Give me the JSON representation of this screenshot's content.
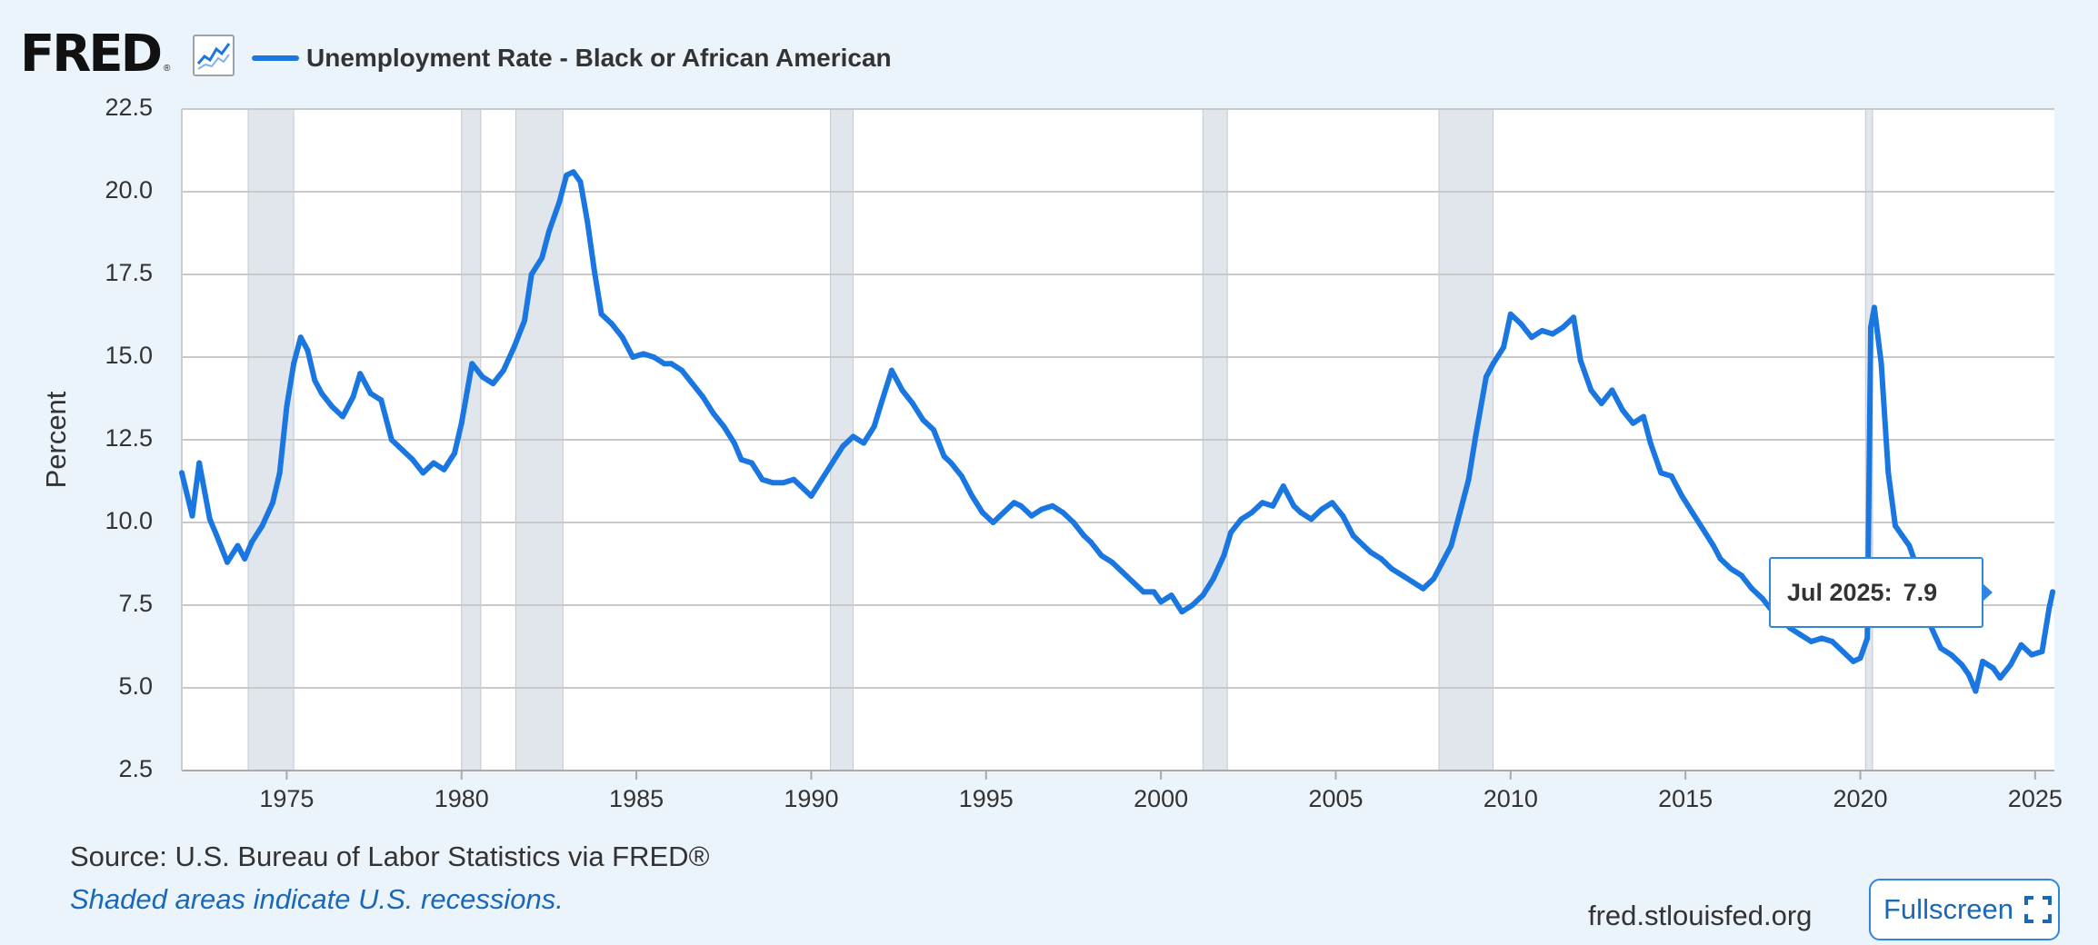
{
  "header": {
    "logo_text": "FRED",
    "logo_reg": "®",
    "graph_icon": "line-graph-icon",
    "legend_label": "Unemployment Rate - Black or African American"
  },
  "tooltip": {
    "date": "Jul 2025:",
    "value": "7.9"
  },
  "footer": {
    "source": "U.S. Bureau of Labor Statistics via FRED®",
    "source_prefix": "Source: ",
    "note": "Shaded areas indicate U.S. recessions.",
    "site": "fred.stlouisfed.org",
    "fullscreen_label": "Fullscreen",
    "fullscreen_icon": "expand-icon"
  },
  "colors": {
    "line": "#1a76e0",
    "recession": "#e1e6ec",
    "grid": "#c9c9c9",
    "background": "#ebf3fb"
  },
  "chart_data": {
    "type": "line",
    "title": "",
    "xlabel": "",
    "ylabel": "Percent",
    "xlim": [
      1972.0,
      2025.55
    ],
    "ylim": [
      2.5,
      22.5
    ],
    "yticks": [
      "2.5",
      "5.0",
      "7.5",
      "10.0",
      "12.5",
      "15.0",
      "17.5",
      "20.0",
      "22.5"
    ],
    "xticks": [
      "1975",
      "1980",
      "1985",
      "1990",
      "1995",
      "2000",
      "2005",
      "2010",
      "2015",
      "2020",
      "2025"
    ],
    "grid": true,
    "legend": "top-left",
    "recessions": [
      [
        1973.9,
        1975.2
      ],
      [
        1980.0,
        1980.55
      ],
      [
        1981.55,
        1982.9
      ],
      [
        1990.55,
        1991.2
      ],
      [
        2001.2,
        2001.9
      ],
      [
        2007.95,
        2009.5
      ],
      [
        2020.15,
        2020.35
      ]
    ],
    "series": [
      {
        "name": "Unemployment Rate - Black or African American",
        "points": [
          [
            1972.0,
            11.5
          ],
          [
            1972.3,
            10.2
          ],
          [
            1972.5,
            11.8
          ],
          [
            1972.8,
            10.1
          ],
          [
            1973.0,
            9.6
          ],
          [
            1973.3,
            8.8
          ],
          [
            1973.6,
            9.3
          ],
          [
            1973.8,
            8.9
          ],
          [
            1974.0,
            9.4
          ],
          [
            1974.3,
            9.9
          ],
          [
            1974.6,
            10.6
          ],
          [
            1974.8,
            11.5
          ],
          [
            1975.0,
            13.5
          ],
          [
            1975.2,
            14.8
          ],
          [
            1975.4,
            15.6
          ],
          [
            1975.6,
            15.2
          ],
          [
            1975.8,
            14.3
          ],
          [
            1976.0,
            13.9
          ],
          [
            1976.3,
            13.5
          ],
          [
            1976.6,
            13.2
          ],
          [
            1976.9,
            13.8
          ],
          [
            1977.1,
            14.5
          ],
          [
            1977.4,
            13.9
          ],
          [
            1977.7,
            13.7
          ],
          [
            1978.0,
            12.5
          ],
          [
            1978.3,
            12.2
          ],
          [
            1978.6,
            11.9
          ],
          [
            1978.9,
            11.5
          ],
          [
            1979.2,
            11.8
          ],
          [
            1979.5,
            11.6
          ],
          [
            1979.8,
            12.1
          ],
          [
            1980.0,
            13.0
          ],
          [
            1980.3,
            14.8
          ],
          [
            1980.6,
            14.4
          ],
          [
            1980.9,
            14.2
          ],
          [
            1981.2,
            14.6
          ],
          [
            1981.5,
            15.3
          ],
          [
            1981.8,
            16.1
          ],
          [
            1982.0,
            17.5
          ],
          [
            1982.3,
            18.0
          ],
          [
            1982.5,
            18.8
          ],
          [
            1982.8,
            19.7
          ],
          [
            1983.0,
            20.5
          ],
          [
            1983.2,
            20.6
          ],
          [
            1983.4,
            20.3
          ],
          [
            1983.6,
            19.1
          ],
          [
            1983.8,
            17.6
          ],
          [
            1984.0,
            16.3
          ],
          [
            1984.3,
            16.0
          ],
          [
            1984.6,
            15.6
          ],
          [
            1984.9,
            15.0
          ],
          [
            1985.2,
            15.1
          ],
          [
            1985.5,
            15.0
          ],
          [
            1985.8,
            14.8
          ],
          [
            1986.0,
            14.8
          ],
          [
            1986.3,
            14.6
          ],
          [
            1986.6,
            14.2
          ],
          [
            1986.9,
            13.8
          ],
          [
            1987.2,
            13.3
          ],
          [
            1987.5,
            12.9
          ],
          [
            1987.8,
            12.4
          ],
          [
            1988.0,
            11.9
          ],
          [
            1988.3,
            11.8
          ],
          [
            1988.6,
            11.3
          ],
          [
            1988.9,
            11.2
          ],
          [
            1989.2,
            11.2
          ],
          [
            1989.5,
            11.3
          ],
          [
            1989.8,
            11.0
          ],
          [
            1990.0,
            10.8
          ],
          [
            1990.3,
            11.3
          ],
          [
            1990.6,
            11.8
          ],
          [
            1990.9,
            12.3
          ],
          [
            1991.2,
            12.6
          ],
          [
            1991.5,
            12.4
          ],
          [
            1991.8,
            12.9
          ],
          [
            1992.0,
            13.6
          ],
          [
            1992.3,
            14.6
          ],
          [
            1992.6,
            14.0
          ],
          [
            1992.9,
            13.6
          ],
          [
            1993.2,
            13.1
          ],
          [
            1993.5,
            12.8
          ],
          [
            1993.8,
            12.0
          ],
          [
            1994.0,
            11.8
          ],
          [
            1994.3,
            11.4
          ],
          [
            1994.6,
            10.8
          ],
          [
            1994.9,
            10.3
          ],
          [
            1995.2,
            10.0
          ],
          [
            1995.5,
            10.3
          ],
          [
            1995.8,
            10.6
          ],
          [
            1996.0,
            10.5
          ],
          [
            1996.3,
            10.2
          ],
          [
            1996.6,
            10.4
          ],
          [
            1996.9,
            10.5
          ],
          [
            1997.2,
            10.3
          ],
          [
            1997.5,
            10.0
          ],
          [
            1997.8,
            9.6
          ],
          [
            1998.0,
            9.4
          ],
          [
            1998.3,
            9.0
          ],
          [
            1998.6,
            8.8
          ],
          [
            1998.9,
            8.5
          ],
          [
            1999.2,
            8.2
          ],
          [
            1999.5,
            7.9
          ],
          [
            1999.8,
            7.9
          ],
          [
            2000.0,
            7.6
          ],
          [
            2000.3,
            7.8
          ],
          [
            2000.6,
            7.3
          ],
          [
            2000.9,
            7.5
          ],
          [
            2001.2,
            7.8
          ],
          [
            2001.5,
            8.3
          ],
          [
            2001.8,
            9.0
          ],
          [
            2002.0,
            9.7
          ],
          [
            2002.3,
            10.1
          ],
          [
            2002.6,
            10.3
          ],
          [
            2002.9,
            10.6
          ],
          [
            2003.2,
            10.5
          ],
          [
            2003.5,
            11.1
          ],
          [
            2003.8,
            10.5
          ],
          [
            2004.0,
            10.3
          ],
          [
            2004.3,
            10.1
          ],
          [
            2004.6,
            10.4
          ],
          [
            2004.9,
            10.6
          ],
          [
            2005.2,
            10.2
          ],
          [
            2005.5,
            9.6
          ],
          [
            2005.8,
            9.3
          ],
          [
            2006.0,
            9.1
          ],
          [
            2006.3,
            8.9
          ],
          [
            2006.6,
            8.6
          ],
          [
            2006.9,
            8.4
          ],
          [
            2007.2,
            8.2
          ],
          [
            2007.5,
            8.0
          ],
          [
            2007.8,
            8.3
          ],
          [
            2008.0,
            8.7
          ],
          [
            2008.3,
            9.3
          ],
          [
            2008.6,
            10.5
          ],
          [
            2008.8,
            11.3
          ],
          [
            2009.0,
            12.6
          ],
          [
            2009.3,
            14.4
          ],
          [
            2009.5,
            14.8
          ],
          [
            2009.8,
            15.3
          ],
          [
            2010.0,
            16.3
          ],
          [
            2010.3,
            16.0
          ],
          [
            2010.6,
            15.6
          ],
          [
            2010.9,
            15.8
          ],
          [
            2011.2,
            15.7
          ],
          [
            2011.5,
            15.9
          ],
          [
            2011.8,
            16.2
          ],
          [
            2012.0,
            14.9
          ],
          [
            2012.3,
            14.0
          ],
          [
            2012.6,
            13.6
          ],
          [
            2012.9,
            14.0
          ],
          [
            2013.2,
            13.4
          ],
          [
            2013.5,
            13.0
          ],
          [
            2013.8,
            13.2
          ],
          [
            2014.0,
            12.4
          ],
          [
            2014.3,
            11.5
          ],
          [
            2014.6,
            11.4
          ],
          [
            2014.9,
            10.8
          ],
          [
            2015.2,
            10.3
          ],
          [
            2015.5,
            9.8
          ],
          [
            2015.8,
            9.3
          ],
          [
            2016.0,
            8.9
          ],
          [
            2016.3,
            8.6
          ],
          [
            2016.6,
            8.4
          ],
          [
            2016.9,
            8.0
          ],
          [
            2017.2,
            7.7
          ],
          [
            2017.5,
            7.3
          ],
          [
            2017.8,
            7.0
          ],
          [
            2018.0,
            6.8
          ],
          [
            2018.3,
            6.6
          ],
          [
            2018.6,
            6.4
          ],
          [
            2018.9,
            6.5
          ],
          [
            2019.2,
            6.4
          ],
          [
            2019.5,
            6.1
          ],
          [
            2019.8,
            5.8
          ],
          [
            2020.0,
            5.9
          ],
          [
            2020.2,
            6.5
          ],
          [
            2020.3,
            15.9
          ],
          [
            2020.4,
            16.5
          ],
          [
            2020.6,
            14.8
          ],
          [
            2020.8,
            11.5
          ],
          [
            2021.0,
            9.9
          ],
          [
            2021.2,
            9.6
          ],
          [
            2021.4,
            9.3
          ],
          [
            2021.6,
            8.7
          ],
          [
            2021.8,
            8.1
          ],
          [
            2022.0,
            6.9
          ],
          [
            2022.3,
            6.2
          ],
          [
            2022.6,
            6.0
          ],
          [
            2022.9,
            5.7
          ],
          [
            2023.1,
            5.4
          ],
          [
            2023.3,
            4.9
          ],
          [
            2023.5,
            5.8
          ],
          [
            2023.8,
            5.6
          ],
          [
            2024.0,
            5.3
          ],
          [
            2024.3,
            5.7
          ],
          [
            2024.6,
            6.3
          ],
          [
            2024.9,
            6.0
          ],
          [
            2025.2,
            6.1
          ],
          [
            2025.4,
            7.4
          ],
          [
            2025.5,
            7.9
          ]
        ]
      }
    ]
  }
}
